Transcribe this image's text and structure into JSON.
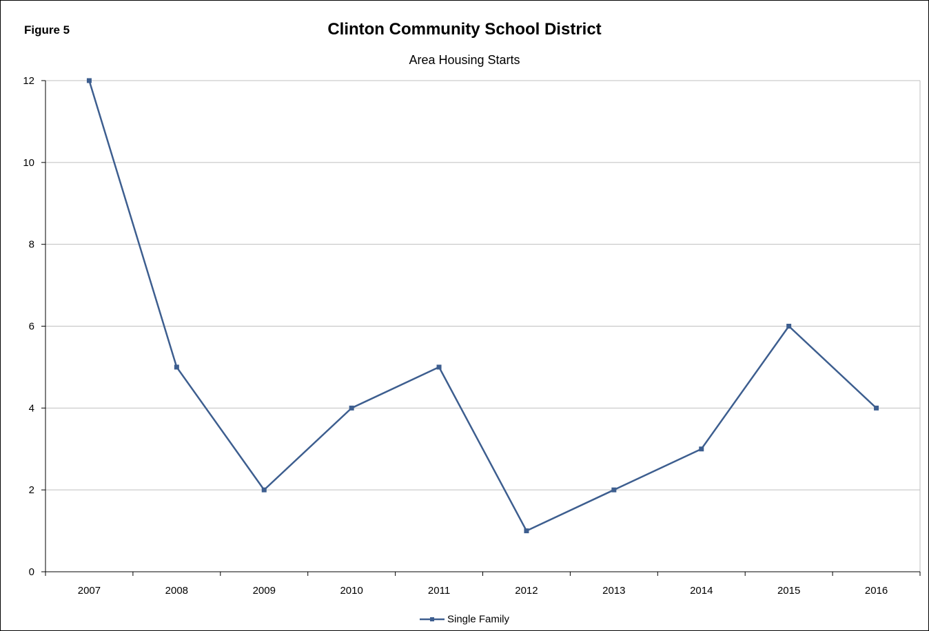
{
  "figure_label": "Figure 5",
  "colors": {
    "series": "#3D5E8F",
    "grid": "#BFBFBF",
    "axis": "#000000"
  },
  "chart_data": {
    "type": "line",
    "title": "Clinton Community School District",
    "subtitle": "Area Housing Starts",
    "xlabel": "",
    "ylabel": "",
    "categories": [
      "2007",
      "2008",
      "2009",
      "2010",
      "2011",
      "2012",
      "2013",
      "2014",
      "2015",
      "2016"
    ],
    "series": [
      {
        "name": "Single Family",
        "values": [
          12,
          5,
          2,
          4,
          5,
          1,
          2,
          3,
          6,
          4
        ]
      }
    ],
    "ylim": [
      0,
      12
    ],
    "yticks": [
      "0",
      "2",
      "4",
      "6",
      "8",
      "10",
      "12"
    ],
    "grid": "horizontal",
    "legend_position": "bottom"
  }
}
